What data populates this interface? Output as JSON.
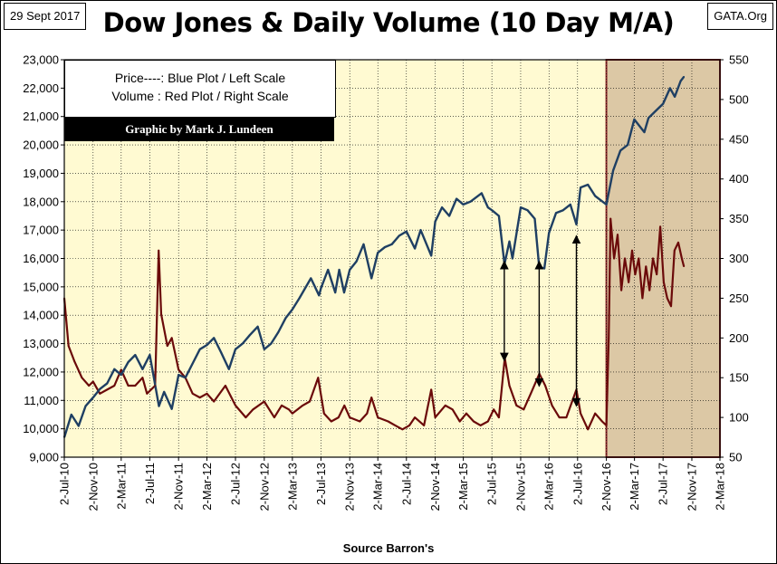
{
  "header": {
    "date": "29 Sept 2017",
    "title": "Dow Jones & Daily Volume (10 Day M/A)",
    "source": "GATA.Org"
  },
  "legend": {
    "line1": "Price----: Blue Plot / Left Scale",
    "line2": "Volume : Red Plot / Right Scale",
    "credit": "Graphic by Mark J. Lundeen"
  },
  "xlabel": "Source Barron's",
  "colors": {
    "price": "#1F3F63",
    "volume": "#6B0A0A",
    "plot_bg": "#FFFAD2",
    "shade": "#DCC8A5",
    "shade_border": "#8B2A2A",
    "grid": "#000000"
  },
  "chart_data": {
    "type": "line",
    "title": "Dow Jones & Daily Volume (10 Day M/A)",
    "xlabel": "Source Barron's",
    "x_tick_labels": [
      "2-Jul-10",
      "2-Nov-10",
      "2-Mar-11",
      "2-Jul-11",
      "2-Nov-11",
      "2-Mar-12",
      "2-Jul-12",
      "2-Nov-12",
      "2-Mar-13",
      "2-Jul-13",
      "2-Nov-13",
      "2-Mar-14",
      "2-Jul-14",
      "2-Nov-14",
      "2-Mar-15",
      "2-Jul-15",
      "2-Nov-15",
      "2-Mar-16",
      "2-Jul-16",
      "2-Nov-16",
      "2-Mar-17",
      "2-Jul-17",
      "2-Nov-17",
      "2-Mar-18"
    ],
    "y_left": {
      "label": "Price",
      "range": [
        9000,
        23000
      ],
      "ticks": [
        "9,000",
        "10,000",
        "11,000",
        "12,000",
        "13,000",
        "14,000",
        "15,000",
        "16,000",
        "17,000",
        "18,000",
        "19,000",
        "20,000",
        "21,000",
        "22,000",
        "23,000"
      ]
    },
    "y_right": {
      "label": "Volume",
      "range": [
        50,
        550
      ],
      "ticks": [
        "50",
        "100",
        "150",
        "200",
        "250",
        "300",
        "350",
        "400",
        "450",
        "500",
        "550"
      ]
    },
    "grid": true,
    "shaded_period": {
      "from": "2-Nov-16",
      "to": "2-Mar-18"
    },
    "annotations": [
      {
        "type": "double-arrow",
        "x": "2015-08-24",
        "from_price": 12400,
        "to_price": 15900
      },
      {
        "type": "double-arrow",
        "x": "2016-01-20",
        "from_price": 11500,
        "to_price": 15900
      },
      {
        "type": "double-arrow",
        "x": "2016-06-27",
        "from_price": 10800,
        "to_price": 16800
      }
    ],
    "series": [
      {
        "name": "Price",
        "axis": "left",
        "points": [
          [
            "2010-07-02",
            9700
          ],
          [
            "2010-08-01",
            10500
          ],
          [
            "2010-09-01",
            10100
          ],
          [
            "2010-10-01",
            10800
          ],
          [
            "2010-11-02",
            11100
          ],
          [
            "2010-12-01",
            11400
          ],
          [
            "2011-01-01",
            11600
          ],
          [
            "2011-02-01",
            12100
          ],
          [
            "2011-03-02",
            11900
          ],
          [
            "2011-04-01",
            12350
          ],
          [
            "2011-05-01",
            12600
          ],
          [
            "2011-06-01",
            12100
          ],
          [
            "2011-07-02",
            12600
          ],
          [
            "2011-08-10",
            10800
          ],
          [
            "2011-09-01",
            11300
          ],
          [
            "2011-10-04",
            10700
          ],
          [
            "2011-11-02",
            11900
          ],
          [
            "2011-12-01",
            11800
          ],
          [
            "2012-01-01",
            12300
          ],
          [
            "2012-02-01",
            12800
          ],
          [
            "2012-03-02",
            12950
          ],
          [
            "2012-04-01",
            13200
          ],
          [
            "2012-05-01",
            12700
          ],
          [
            "2012-06-04",
            12100
          ],
          [
            "2012-07-02",
            12800
          ],
          [
            "2012-08-01",
            13000
          ],
          [
            "2012-09-01",
            13300
          ],
          [
            "2012-10-05",
            13600
          ],
          [
            "2012-11-02",
            12800
          ],
          [
            "2012-12-01",
            13000
          ],
          [
            "2013-01-01",
            13400
          ],
          [
            "2013-02-01",
            13900
          ],
          [
            "2013-03-02",
            14200
          ],
          [
            "2013-04-01",
            14600
          ],
          [
            "2013-05-20",
            15300
          ],
          [
            "2013-06-24",
            14700
          ],
          [
            "2013-07-02",
            14950
          ],
          [
            "2013-08-01",
            15600
          ],
          [
            "2013-09-01",
            14800
          ],
          [
            "2013-09-18",
            15600
          ],
          [
            "2013-10-09",
            14800
          ],
          [
            "2013-11-02",
            15600
          ],
          [
            "2013-12-01",
            15900
          ],
          [
            "2013-12-31",
            16500
          ],
          [
            "2014-02-03",
            15300
          ],
          [
            "2014-03-02",
            16200
          ],
          [
            "2014-04-01",
            16400
          ],
          [
            "2014-05-01",
            16500
          ],
          [
            "2014-06-01",
            16800
          ],
          [
            "2014-07-02",
            16950
          ],
          [
            "2014-08-07",
            16350
          ],
          [
            "2014-09-01",
            17000
          ],
          [
            "2014-10-16",
            16100
          ],
          [
            "2014-11-02",
            17300
          ],
          [
            "2014-12-01",
            17800
          ],
          [
            "2015-01-01",
            17500
          ],
          [
            "2015-02-01",
            18100
          ],
          [
            "2015-03-02",
            17900
          ],
          [
            "2015-04-01",
            18000
          ],
          [
            "2015-05-19",
            18300
          ],
          [
            "2015-06-15",
            17800
          ],
          [
            "2015-07-02",
            17700
          ],
          [
            "2015-08-01",
            17500
          ],
          [
            "2015-08-25",
            15800
          ],
          [
            "2015-09-15",
            16600
          ],
          [
            "2015-09-28",
            16000
          ],
          [
            "2015-11-02",
            17800
          ],
          [
            "2015-12-01",
            17700
          ],
          [
            "2016-01-01",
            17400
          ],
          [
            "2016-01-20",
            15700
          ],
          [
            "2016-02-11",
            15650
          ],
          [
            "2016-03-02",
            16900
          ],
          [
            "2016-04-01",
            17600
          ],
          [
            "2016-05-01",
            17700
          ],
          [
            "2016-06-01",
            17900
          ],
          [
            "2016-06-27",
            17200
          ],
          [
            "2016-07-15",
            18500
          ],
          [
            "2016-08-15",
            18600
          ],
          [
            "2016-09-15",
            18200
          ],
          [
            "2016-11-02",
            17900
          ],
          [
            "2016-12-01",
            19100
          ],
          [
            "2017-01-01",
            19800
          ],
          [
            "2017-02-01",
            20000
          ],
          [
            "2017-03-01",
            20900
          ],
          [
            "2017-04-13",
            20450
          ],
          [
            "2017-05-01",
            20950
          ],
          [
            "2017-06-01",
            21200
          ],
          [
            "2017-07-02",
            21450
          ],
          [
            "2017-08-01",
            22000
          ],
          [
            "2017-08-21",
            21700
          ],
          [
            "2017-09-15",
            22250
          ],
          [
            "2017-09-29",
            22400
          ]
        ]
      },
      {
        "name": "Volume",
        "axis": "right",
        "points": [
          [
            "2010-07-02",
            250
          ],
          [
            "2010-07-20",
            190
          ],
          [
            "2010-08-15",
            170
          ],
          [
            "2010-09-15",
            150
          ],
          [
            "2010-10-15",
            140
          ],
          [
            "2010-11-02",
            145
          ],
          [
            "2010-12-01",
            130
          ],
          [
            "2011-01-01",
            135
          ],
          [
            "2011-02-01",
            140
          ],
          [
            "2011-03-02",
            160
          ],
          [
            "2011-04-01",
            140
          ],
          [
            "2011-05-01",
            140
          ],
          [
            "2011-06-01",
            150
          ],
          [
            "2011-06-20",
            130
          ],
          [
            "2011-07-25",
            140
          ],
          [
            "2011-08-09",
            310
          ],
          [
            "2011-08-20",
            230
          ],
          [
            "2011-09-15",
            190
          ],
          [
            "2011-10-04",
            200
          ],
          [
            "2011-11-02",
            160
          ],
          [
            "2011-12-01",
            150
          ],
          [
            "2012-01-01",
            130
          ],
          [
            "2012-02-01",
            125
          ],
          [
            "2012-03-02",
            130
          ],
          [
            "2012-04-01",
            120
          ],
          [
            "2012-05-20",
            140
          ],
          [
            "2012-07-02",
            115
          ],
          [
            "2012-08-15",
            100
          ],
          [
            "2012-09-15",
            110
          ],
          [
            "2012-11-02",
            120
          ],
          [
            "2012-12-15",
            100
          ],
          [
            "2013-01-15",
            115
          ],
          [
            "2013-02-15",
            110
          ],
          [
            "2013-03-02",
            105
          ],
          [
            "2013-04-15",
            115
          ],
          [
            "2013-05-15",
            120
          ],
          [
            "2013-06-20",
            150
          ],
          [
            "2013-07-15",
            105
          ],
          [
            "2013-08-15",
            95
          ],
          [
            "2013-09-15",
            100
          ],
          [
            "2013-10-10",
            115
          ],
          [
            "2013-11-02",
            100
          ],
          [
            "2013-12-15",
            95
          ],
          [
            "2014-01-15",
            105
          ],
          [
            "2014-02-03",
            125
          ],
          [
            "2014-03-02",
            100
          ],
          [
            "2014-04-15",
            95
          ],
          [
            "2014-05-15",
            90
          ],
          [
            "2014-06-15",
            85
          ],
          [
            "2014-07-15",
            90
          ],
          [
            "2014-08-07",
            100
          ],
          [
            "2014-09-15",
            90
          ],
          [
            "2014-10-16",
            135
          ],
          [
            "2014-11-02",
            100
          ],
          [
            "2014-12-15",
            115
          ],
          [
            "2015-01-15",
            110
          ],
          [
            "2015-02-15",
            95
          ],
          [
            "2015-03-15",
            105
          ],
          [
            "2015-04-15",
            95
          ],
          [
            "2015-05-15",
            90
          ],
          [
            "2015-06-15",
            95
          ],
          [
            "2015-07-10",
            110
          ],
          [
            "2015-08-01",
            100
          ],
          [
            "2015-08-26",
            175
          ],
          [
            "2015-09-15",
            140
          ],
          [
            "2015-10-15",
            115
          ],
          [
            "2015-11-15",
            110
          ],
          [
            "2015-12-15",
            130
          ],
          [
            "2016-01-21",
            155
          ],
          [
            "2016-02-15",
            140
          ],
          [
            "2016-03-15",
            115
          ],
          [
            "2016-04-15",
            100
          ],
          [
            "2016-05-15",
            100
          ],
          [
            "2016-06-27",
            135
          ],
          [
            "2016-07-15",
            105
          ],
          [
            "2016-08-15",
            85
          ],
          [
            "2016-09-15",
            105
          ],
          [
            "2016-10-15",
            95
          ],
          [
            "2016-11-02",
            90
          ],
          [
            "2016-11-12",
            200
          ],
          [
            "2016-11-20",
            350
          ],
          [
            "2016-12-05",
            300
          ],
          [
            "2016-12-20",
            330
          ],
          [
            "2017-01-05",
            260
          ],
          [
            "2017-01-20",
            300
          ],
          [
            "2017-02-05",
            270
          ],
          [
            "2017-02-20",
            310
          ],
          [
            "2017-03-05",
            280
          ],
          [
            "2017-03-20",
            300
          ],
          [
            "2017-04-05",
            250
          ],
          [
            "2017-04-20",
            290
          ],
          [
            "2017-05-05",
            260
          ],
          [
            "2017-05-20",
            300
          ],
          [
            "2017-06-05",
            280
          ],
          [
            "2017-06-20",
            340
          ],
          [
            "2017-07-05",
            270
          ],
          [
            "2017-07-20",
            250
          ],
          [
            "2017-08-05",
            240
          ],
          [
            "2017-08-20",
            310
          ],
          [
            "2017-09-05",
            320
          ],
          [
            "2017-09-20",
            300
          ],
          [
            "2017-09-29",
            290
          ]
        ]
      }
    ]
  }
}
